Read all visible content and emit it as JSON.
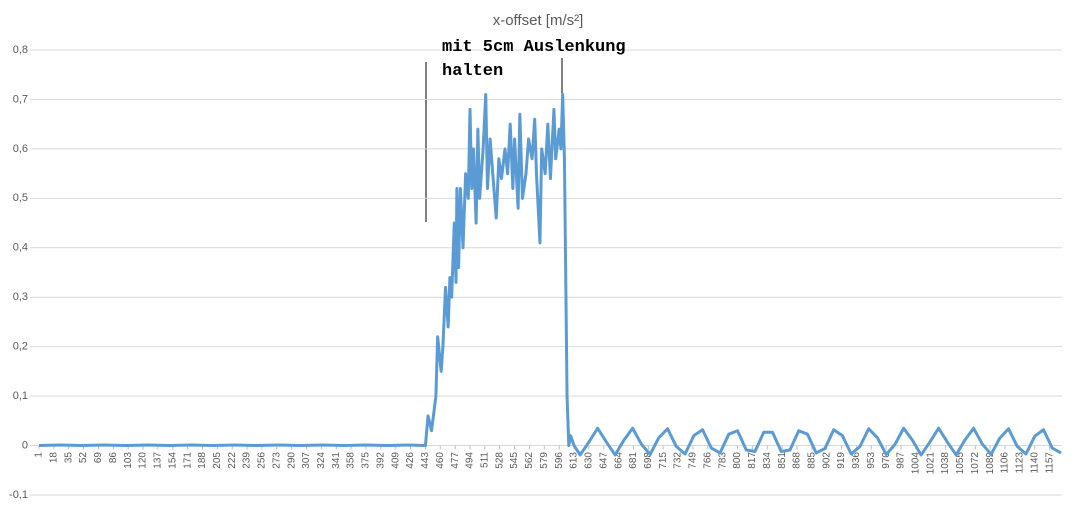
{
  "chart_data": {
    "type": "line",
    "title": "x-offset [m/s²]",
    "annotation": "mit 5cm Auslenkung halten",
    "color": "#5b9bd5",
    "grid": true,
    "xlim": [
      1,
      1170
    ],
    "xticks": [
      1,
      18,
      35,
      52,
      69,
      86,
      103,
      120,
      137,
      154,
      171,
      188,
      205,
      222,
      239,
      256,
      273,
      290,
      307,
      324,
      341,
      358,
      375,
      392,
      409,
      426,
      443,
      460,
      477,
      494,
      511,
      528,
      545,
      562,
      579,
      596,
      613,
      630,
      647,
      664,
      681,
      698,
      715,
      732,
      749,
      766,
      783,
      800,
      817,
      834,
      851,
      868,
      885,
      902,
      919,
      936,
      953,
      970,
      987,
      1004,
      1021,
      1038,
      1055,
      1072,
      1089,
      1106,
      1123,
      1140,
      1157
    ],
    "ylim": [
      -0.1,
      0.8
    ],
    "yticks": [
      {
        "value": -0.1,
        "label": "-0,1"
      },
      0,
      {
        "value": 0.1,
        "label": "0,1"
      },
      {
        "value": 0.2,
        "label": "0,2"
      },
      {
        "value": 0.3,
        "label": "0,3"
      },
      {
        "value": 0.4,
        "label": "0,4"
      },
      {
        "value": 0.5,
        "label": "0,5"
      },
      {
        "value": 0.6,
        "label": "0,6"
      },
      {
        "value": 0.7,
        "label": "0,7"
      },
      {
        "value": 0.8,
        "label": "0,8"
      }
    ],
    "x": [
      1,
      25,
      50,
      75,
      100,
      125,
      150,
      175,
      200,
      225,
      250,
      275,
      300,
      325,
      350,
      375,
      400,
      425,
      440,
      443,
      446,
      450,
      455,
      457,
      461,
      463,
      466,
      469,
      471,
      473,
      476,
      478,
      479,
      481,
      483,
      486,
      489,
      492,
      494,
      496,
      498,
      501,
      503,
      505,
      509,
      512,
      514,
      517,
      520,
      524,
      527,
      530,
      534,
      537,
      540,
      543,
      545,
      549,
      551,
      554,
      558,
      561,
      565,
      568,
      570,
      574,
      576,
      580,
      583,
      586,
      590,
      592,
      596,
      598,
      600,
      602,
      605,
      607,
      609,
      613,
      620,
      630,
      640,
      650,
      660,
      670,
      680,
      690,
      700,
      710,
      720,
      730,
      740,
      750,
      760,
      770,
      780,
      790,
      800,
      810,
      820,
      830,
      840,
      850,
      860,
      870,
      880,
      890,
      900,
      910,
      920,
      930,
      940,
      950,
      960,
      970,
      980,
      990,
      1000,
      1010,
      1020,
      1030,
      1040,
      1050,
      1060,
      1070,
      1080,
      1090,
      1100,
      1110,
      1120,
      1130,
      1140,
      1150,
      1160,
      1170
    ],
    "values": [
      0,
      0.001,
      0,
      0.001,
      0,
      0.001,
      0,
      0.001,
      0,
      0.001,
      0,
      0.001,
      0,
      0.001,
      0,
      0.001,
      0,
      0.001,
      0,
      0,
      0.06,
      0.03,
      0.1,
      0.22,
      0.15,
      0.2,
      0.32,
      0.24,
      0.34,
      0.3,
      0.45,
      0.33,
      0.52,
      0.36,
      0.52,
      0.4,
      0.55,
      0.5,
      0.68,
      0.52,
      0.6,
      0.45,
      0.64,
      0.5,
      0.6,
      0.71,
      0.52,
      0.62,
      0.55,
      0.46,
      0.58,
      0.54,
      0.6,
      0.55,
      0.65,
      0.52,
      0.62,
      0.48,
      0.67,
      0.5,
      0.55,
      0.62,
      0.58,
      0.66,
      0.55,
      0.41,
      0.6,
      0.55,
      0.65,
      0.54,
      0.68,
      0.58,
      0.64,
      0.6,
      0.71,
      0.58,
      0.1,
      0,
      0.02,
      0,
      -0.019,
      0.007,
      0.035,
      0.007,
      -0.019,
      0.011,
      0.035,
      0.003,
      -0.018,
      0.016,
      0.034,
      -0.002,
      -0.017,
      0.02,
      0.032,
      -0.005,
      -0.015,
      0.023,
      0.03,
      -0.009,
      -0.012,
      0.027,
      0.027,
      -0.012,
      -0.009,
      0.03,
      0.023,
      -0.015,
      -0.006,
      0.032,
      0.02,
      -0.017,
      -0.002,
      0.034,
      0.016,
      -0.018,
      0.002,
      0.035,
      0.011,
      -0.019,
      0.007,
      0.035,
      0.007,
      -0.019,
      0.011,
      0.035,
      0.003,
      -0.018,
      0.015,
      0.034,
      -0.002,
      -0.017,
      0.019,
      0.032,
      -0.005,
      -0.015
    ]
  }
}
